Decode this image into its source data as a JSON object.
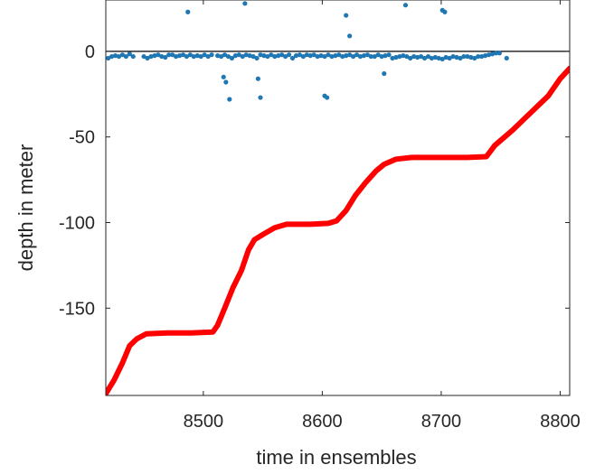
{
  "chart_data": {
    "type": "scatter",
    "xlabel": "time in ensembles",
    "ylabel": "depth in meter",
    "xlim": [
      8418,
      8808
    ],
    "ylim": [
      -201,
      30
    ],
    "xticks": [
      8500,
      8600,
      8700,
      8800
    ],
    "yticks": [
      0,
      -50,
      -100,
      -150
    ],
    "grid": false,
    "legend": "none",
    "zero_line": 0,
    "colors": {
      "instrument": "#ff0000",
      "scatter": "#1f77b4",
      "zero_line": "#000000",
      "axes": "#262626"
    },
    "series": [
      {
        "style": "thick-line",
        "x": [
          8418,
          8425,
          8432,
          8438,
          8444,
          8452,
          8470,
          8490,
          8508,
          8512,
          8518,
          8525,
          8532,
          8538,
          8543,
          8550,
          8560,
          8570,
          8590,
          8605,
          8612,
          8620,
          8628,
          8636,
          8645,
          8652,
          8662,
          8675,
          8700,
          8722,
          8738,
          8745,
          8760,
          8775,
          8790,
          8800,
          8808
        ],
        "y": [
          -200,
          -192,
          -182,
          -172,
          -168,
          -165,
          -164.5,
          -164.5,
          -164,
          -160,
          -150,
          -138,
          -128,
          -116,
          -110,
          -107,
          -103,
          -101,
          -101,
          -100.5,
          -99,
          -93,
          -84,
          -77,
          -70,
          -66,
          -63,
          -62,
          -62,
          -62,
          -61.5,
          -55,
          -46,
          -36,
          -26,
          -16,
          -10
        ]
      },
      {
        "style": "dots",
        "x": [
          8420,
          8423,
          8426,
          8429,
          8432,
          8435,
          8438,
          8441,
          8450,
          8453,
          8456,
          8459,
          8462,
          8465,
          8468,
          8471,
          8474,
          8477,
          8480,
          8483,
          8486,
          8489,
          8492,
          8495,
          8498,
          8501,
          8504,
          8507,
          8512,
          8515,
          8518,
          8521,
          8524,
          8527,
          8530,
          8533,
          8536,
          8539,
          8542,
          8545,
          8548,
          8551,
          8554,
          8557,
          8560,
          8563,
          8566,
          8569,
          8572,
          8575,
          8578,
          8581,
          8584,
          8587,
          8590,
          8593,
          8596,
          8599,
          8602,
          8605,
          8608,
          8611,
          8614,
          8617,
          8620,
          8623,
          8626,
          8629,
          8632,
          8635,
          8638,
          8641,
          8644,
          8647,
          8650,
          8653,
          8656,
          8659,
          8662,
          8665,
          8668,
          8671,
          8674,
          8677,
          8680,
          8683,
          8686,
          8689,
          8692,
          8695,
          8698,
          8701,
          8704,
          8707,
          8710,
          8713,
          8716,
          8719,
          8722,
          8725,
          8728,
          8731,
          8734,
          8737,
          8740,
          8743,
          8746,
          8749,
          8755,
          8487,
          8509,
          8511,
          8535,
          8620,
          8623,
          8648,
          8670,
          8701,
          8703,
          8517,
          8519,
          8522,
          8546,
          8548,
          8602,
          8604,
          8652
        ],
        "y": [
          -4,
          -3,
          -2.5,
          -3,
          -2,
          -3,
          -1.5,
          -3,
          -3,
          -4,
          -3,
          -2.5,
          -2,
          -3,
          -3.5,
          -2,
          -2,
          -3,
          -2.5,
          -2,
          -3,
          -2,
          -3,
          -2.5,
          -3,
          -2,
          -3,
          -2,
          -2.5,
          -3,
          -2,
          -3,
          -4,
          -2.5,
          -2,
          -3,
          -2,
          -2.5,
          -3,
          -4,
          -2,
          -2.5,
          -3,
          -2,
          -3,
          -2.5,
          -2,
          -3,
          -2,
          -4,
          -2.5,
          -2,
          -3,
          -2,
          -2.5,
          -2,
          -3,
          -2.5,
          -3,
          -2,
          -3,
          -2.5,
          -2,
          -3,
          -2.5,
          -2,
          -3,
          -2,
          -3,
          -2.5,
          -2,
          -3,
          -3,
          -2,
          -3,
          -2.5,
          -2,
          -4,
          -3.5,
          -3,
          -2.5,
          -3,
          -4,
          -3,
          -3.5,
          -3,
          -4,
          -3,
          -4,
          -3.5,
          -4,
          -4.5,
          -3.5,
          -4,
          -3,
          -3.5,
          -4,
          -3,
          -3,
          -3.5,
          -4,
          -3,
          -3,
          -2.5,
          -2,
          -1.5,
          -1,
          -1,
          -4,
          23,
          29,
          30,
          28,
          21,
          9,
          29,
          27,
          24,
          23,
          -15,
          -18,
          -28,
          -16,
          -27,
          -26,
          -27,
          -13
        ]
      }
    ]
  }
}
